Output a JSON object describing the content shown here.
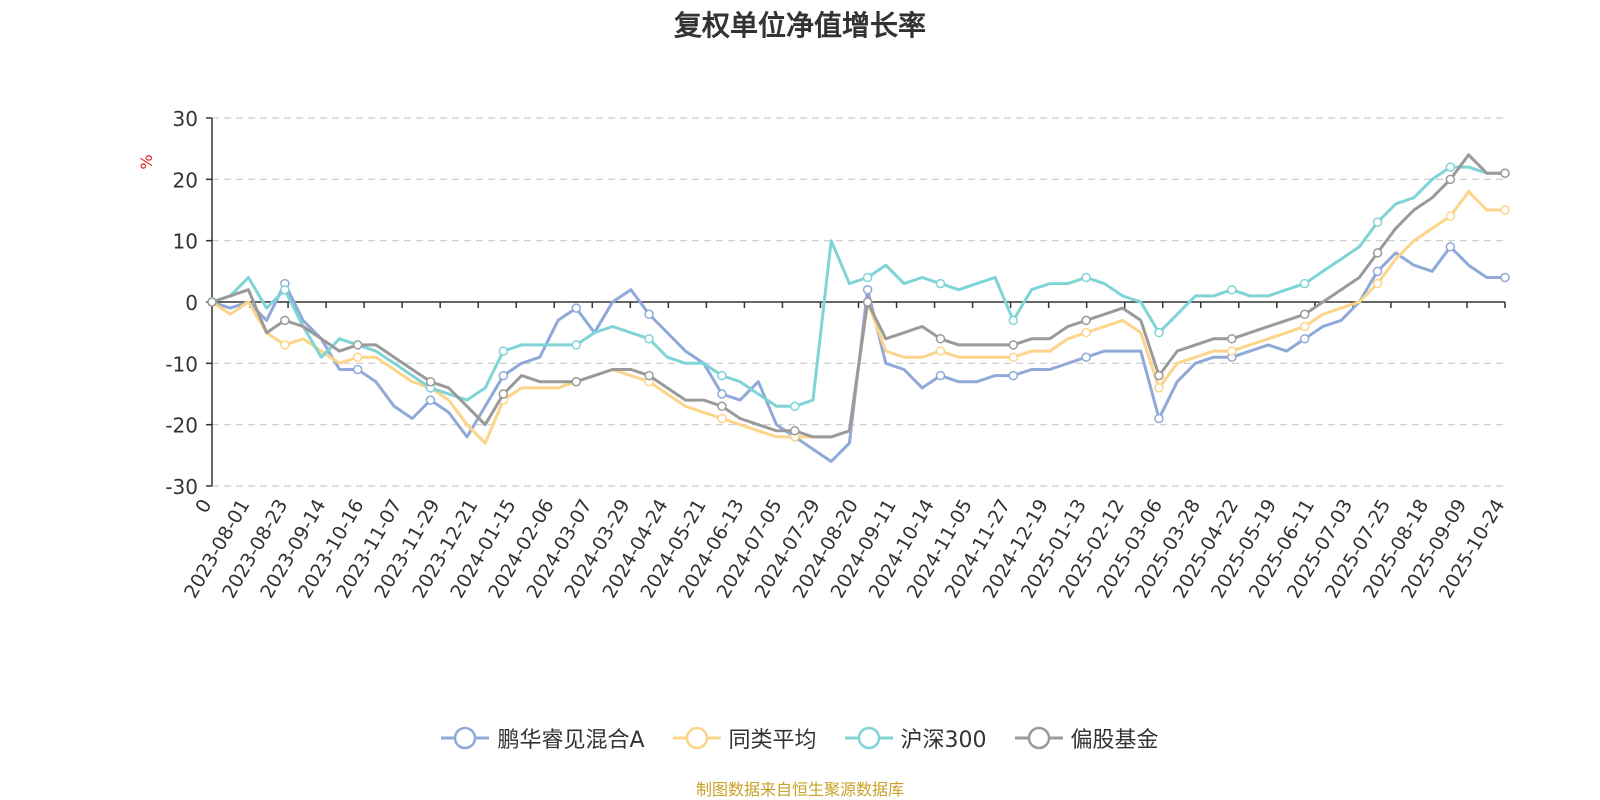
{
  "chart_data": {
    "type": "line",
    "title": "复权单位净值增长率",
    "ylabel": "%",
    "ylim": [
      -30,
      30
    ],
    "yticks": [
      "30",
      "20",
      "10",
      "0",
      "-10",
      "-20",
      "-30"
    ],
    "xticks": [
      "0",
      "2023-08-01",
      "2023-08-23",
      "2023-09-14",
      "2023-10-16",
      "2023-11-07",
      "2023-11-29",
      "2023-12-21",
      "2024-01-15",
      "2024-02-06",
      "2024-03-07",
      "2024-03-29",
      "2024-04-24",
      "2024-05-21",
      "2024-06-13",
      "2024-07-05",
      "2024-07-29",
      "2024-08-20",
      "2024-09-11",
      "2024-10-14",
      "2024-11-05",
      "2024-11-27",
      "2024-12-19",
      "2025-01-13",
      "2025-02-12",
      "2025-03-06",
      "2025-03-28",
      "2025-04-22",
      "2025-05-19",
      "2025-06-11",
      "2025-07-03",
      "2025-07-25",
      "2025-08-18",
      "2025-09-09",
      "2025-10-24"
    ],
    "grid": true,
    "legend_position": "bottom",
    "series": [
      {
        "name": "鹏华睿见混合A",
        "color": "#8fa9d9",
        "values": [
          0,
          -1,
          0,
          -3,
          3,
          -3,
          -6,
          -11,
          -11,
          -13,
          -17,
          -19,
          -16,
          -18,
          -22,
          -17,
          -12,
          -10,
          -9,
          -3,
          -1,
          -5,
          0,
          2,
          -2,
          -5,
          -8,
          -10,
          -15,
          -16,
          -13,
          -20,
          -22,
          -24,
          -26,
          -23,
          2,
          -10,
          -11,
          -14,
          -12,
          -13,
          -13,
          -12,
          -12,
          -11,
          -11,
          -10,
          -9,
          -8,
          -8,
          -8,
          -19,
          -13,
          -10,
          -9,
          -9,
          -8,
          -7,
          -8,
          -6,
          -4,
          -3,
          0,
          5,
          8,
          6,
          5,
          9,
          6,
          4,
          4
        ]
      },
      {
        "name": "同类平均",
        "color": "#fcd48a",
        "values": [
          0,
          -2,
          0,
          -5,
          -7,
          -6,
          -8,
          -10,
          -9,
          -9,
          -11,
          -13,
          -14,
          -16,
          -20,
          -23,
          -16,
          -14,
          -14,
          -14,
          -13,
          -12,
          -11,
          -12,
          -13,
          -15,
          -17,
          -18,
          -19,
          -20,
          -21,
          -22,
          -22,
          -22,
          -22,
          -21,
          0,
          -8,
          -9,
          -9,
          -8,
          -9,
          -9,
          -9,
          -9,
          -8,
          -8,
          -6,
          -5,
          -4,
          -3,
          -5,
          -14,
          -10,
          -9,
          -8,
          -8,
          -7,
          -6,
          -5,
          -4,
          -2,
          -1,
          0,
          3,
          7,
          10,
          12,
          14,
          18,
          15,
          15
        ]
      },
      {
        "name": "沪深300",
        "color": "#7fd4d6",
        "values": [
          0,
          1,
          4,
          -1,
          2,
          -4,
          -9,
          -6,
          -7,
          -8,
          -10,
          -12,
          -14,
          -15,
          -16,
          -14,
          -8,
          -7,
          -7,
          -7,
          -7,
          -5,
          -4,
          -5,
          -6,
          -9,
          -10,
          -10,
          -12,
          -13,
          -15,
          -17,
          -17,
          -16,
          10,
          3,
          4,
          6,
          3,
          4,
          3,
          2,
          3,
          4,
          -3,
          2,
          3,
          3,
          4,
          3,
          1,
          0,
          -5,
          -2,
          1,
          1,
          2,
          1,
          1,
          2,
          3,
          5,
          7,
          9,
          13,
          16,
          17,
          20,
          22,
          22,
          21,
          21
        ]
      },
      {
        "name": "偏股基金",
        "color": "#9a9a9a",
        "values": [
          0,
          1,
          2,
          -5,
          -3,
          -4,
          -6,
          -8,
          -7,
          -7,
          -9,
          -11,
          -13,
          -14,
          -17,
          -20,
          -15,
          -12,
          -13,
          -13,
          -13,
          -12,
          -11,
          -11,
          -12,
          -14,
          -16,
          -16,
          -17,
          -19,
          -20,
          -21,
          -21,
          -22,
          -22,
          -21,
          0,
          -6,
          -5,
          -4,
          -6,
          -7,
          -7,
          -7,
          -7,
          -6,
          -6,
          -4,
          -3,
          -2,
          -1,
          -3,
          -12,
          -8,
          -7,
          -6,
          -6,
          -5,
          -4,
          -3,
          -2,
          0,
          2,
          4,
          8,
          12,
          15,
          17,
          20,
          24,
          21,
          21
        ]
      }
    ]
  },
  "source_note": {
    "text": "制图数据来自恒生聚源数据库",
    "color": "#c9a227"
  }
}
